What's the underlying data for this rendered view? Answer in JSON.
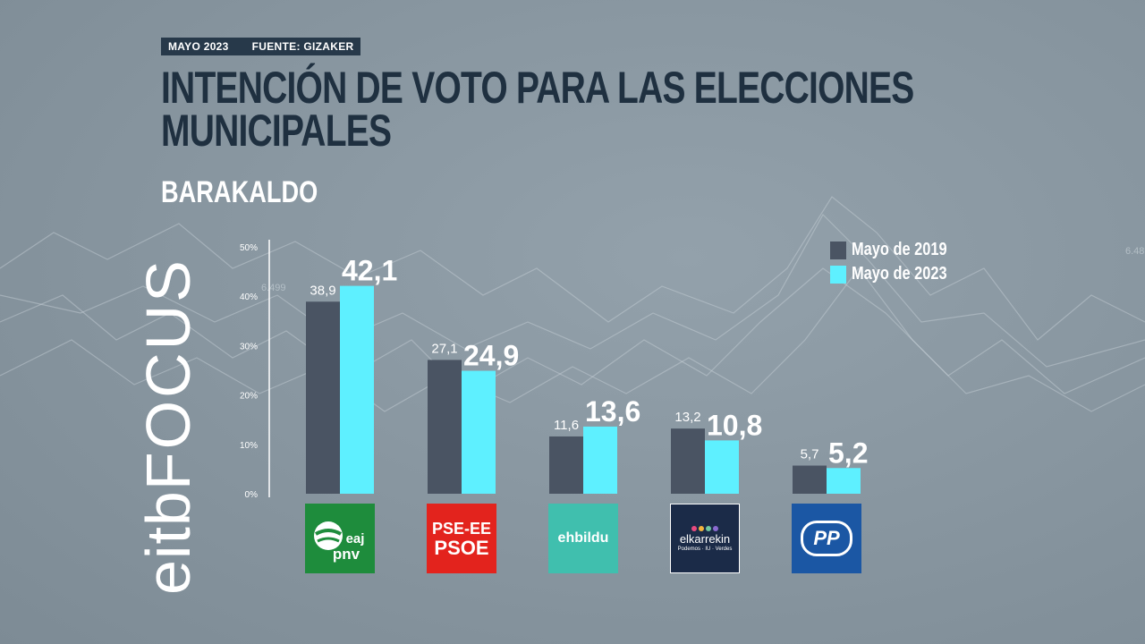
{
  "header": {
    "date": "MAYO 2023",
    "source": "FUENTE: GIZAKER",
    "title_line1": "INTENCIÓN DE VOTO PARA LAS ELECCIONES",
    "title_line2": "MUNICIPALES",
    "subtitle": "BARAKALDO"
  },
  "branding": {
    "logo_text": "eitb",
    "logo_text2": "FOCUS"
  },
  "background_labels": [
    "6.499",
    "6.48"
  ],
  "colors": {
    "series_2019": "#4a5463",
    "series_2023": "#5ef0ff",
    "axis": "#ffffff",
    "title": "#1f3040"
  },
  "parties": [
    {
      "key": "pnv",
      "line1": "eaj",
      "line2": "pnv"
    },
    {
      "key": "psoe",
      "line1": "PSE-EE",
      "line2": "PSOE"
    },
    {
      "key": "bildu",
      "line1": "ehbildu"
    },
    {
      "key": "elkarrekin",
      "line1": "elkarrekin",
      "line2": "Podemos · IU · Verdes"
    },
    {
      "key": "pp",
      "line1": "PP"
    }
  ],
  "chart_data": {
    "type": "bar",
    "categories": [
      "EAJ-PNV",
      "PSE-EE PSOE",
      "EH Bildu",
      "Elkarrekin",
      "PP"
    ],
    "series": [
      {
        "name": "Mayo de 2019",
        "values": [
          38.9,
          27.1,
          11.6,
          13.2,
          5.7
        ],
        "labels": [
          "38,9",
          "27,1",
          "11,6",
          "13,2",
          "5,7"
        ]
      },
      {
        "name": "Mayo de 2023",
        "values": [
          42.1,
          24.9,
          13.6,
          10.8,
          5.2
        ],
        "labels": [
          "42,1",
          "24,9",
          "13,6",
          "10,8",
          "5,2"
        ]
      }
    ],
    "yticks": [
      "0%",
      "10%",
      "20%",
      "30%",
      "40%",
      "50%"
    ],
    "ytick_values": [
      0,
      10,
      20,
      30,
      40,
      50
    ],
    "ylim": [
      0,
      50
    ],
    "grid": false,
    "legend_position": "top-right"
  }
}
